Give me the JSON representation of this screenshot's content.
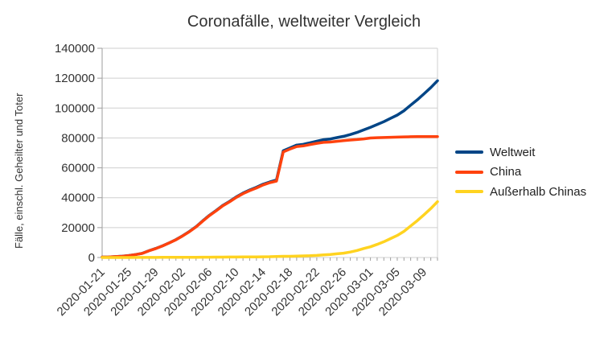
{
  "chart_data": {
    "type": "line",
    "title": "Coronafälle, weltweiter Vergleich",
    "xlabel": "",
    "ylabel": "Fälle, einschl. Geheilter und Toter",
    "ylim": [
      0,
      140000
    ],
    "ytick_step": 20000,
    "grid": "horizontal-only",
    "legend_position": "right",
    "x_tick_every": 4,
    "x_tick_labels": [
      "2020-01-21",
      "2020-01-25",
      "2020-01-29",
      "2020-02-02",
      "2020-02-06",
      "2020-02-10",
      "2020-02-14",
      "2020-02-18",
      "2020-02-22",
      "2020-02-26",
      "2020-03-01",
      "2020-03-05",
      "2020-03-09"
    ],
    "x": [
      "2020-01-21",
      "2020-01-22",
      "2020-01-23",
      "2020-01-24",
      "2020-01-25",
      "2020-01-26",
      "2020-01-27",
      "2020-01-28",
      "2020-01-29",
      "2020-01-30",
      "2020-01-31",
      "2020-02-01",
      "2020-02-02",
      "2020-02-03",
      "2020-02-04",
      "2020-02-05",
      "2020-02-06",
      "2020-02-07",
      "2020-02-08",
      "2020-02-09",
      "2020-02-10",
      "2020-02-11",
      "2020-02-12",
      "2020-02-13",
      "2020-02-14",
      "2020-02-15",
      "2020-02-16",
      "2020-02-17",
      "2020-02-18",
      "2020-02-19",
      "2020-02-20",
      "2020-02-21",
      "2020-02-22",
      "2020-02-23",
      "2020-02-24",
      "2020-02-25",
      "2020-02-26",
      "2020-02-27",
      "2020-02-28",
      "2020-02-29",
      "2020-03-01",
      "2020-03-02",
      "2020-03-03",
      "2020-03-04",
      "2020-03-05",
      "2020-03-06",
      "2020-03-07",
      "2020-03-08",
      "2020-03-09",
      "2020-03-10",
      "2020-03-11"
    ],
    "series": [
      {
        "name": "Weltweit",
        "color": "#004586",
        "values": [
          282,
          314,
          581,
          846,
          1320,
          2014,
          2798,
          4593,
          6065,
          7818,
          9826,
          11953,
          14557,
          17391,
          20630,
          24554,
          28276,
          31481,
          34886,
          37558,
          40554,
          43103,
          45171,
          46997,
          49053,
          50580,
          51857,
          71429,
          73332,
          75204,
          75748,
          76769,
          77794,
          78811,
          79331,
          80239,
          81109,
          82294,
          83652,
          85403,
          87137,
          88948,
          90869,
          93090,
          95324,
          98192,
          101927,
          105586,
          109577,
          113702,
          118326
        ]
      },
      {
        "name": "China",
        "color": "#FF420E",
        "values": [
          278,
          309,
          571,
          830,
          1297,
          1985,
          2761,
          4537,
          5997,
          7736,
          9720,
          11821,
          14411,
          17238,
          20471,
          24363,
          28060,
          31211,
          34598,
          37251,
          40235,
          42708,
          44730,
          46550,
          48548,
          50054,
          51174,
          70635,
          72528,
          74280,
          74675,
          75569,
          76392,
          77042,
          77262,
          77780,
          78191,
          78630,
          78961,
          79394,
          79968,
          80174,
          80304,
          80422,
          80565,
          80711,
          80813,
          80859,
          80904,
          80924,
          80955
        ]
      },
      {
        "name": "Außerhalb Chinas",
        "color": "#FFD320",
        "values": [
          4,
          5,
          10,
          16,
          23,
          29,
          37,
          56,
          68,
          82,
          106,
          132,
          146,
          153,
          159,
          191,
          216,
          270,
          288,
          307,
          319,
          395,
          441,
          447,
          505,
          526,
          683,
          794,
          804,
          924,
          1073,
          1200,
          1402,
          1769,
          2069,
          2459,
          2918,
          3664,
          4691,
          6009,
          7169,
          8774,
          10565,
          12668,
          14759,
          17481,
          21114,
          24727,
          28673,
          32778,
          37371
        ]
      }
    ],
    "colors": {
      "grid": "#cfcfcf",
      "axis": "#9e9e9e",
      "text": "#333333",
      "background": "#ffffff"
    }
  }
}
